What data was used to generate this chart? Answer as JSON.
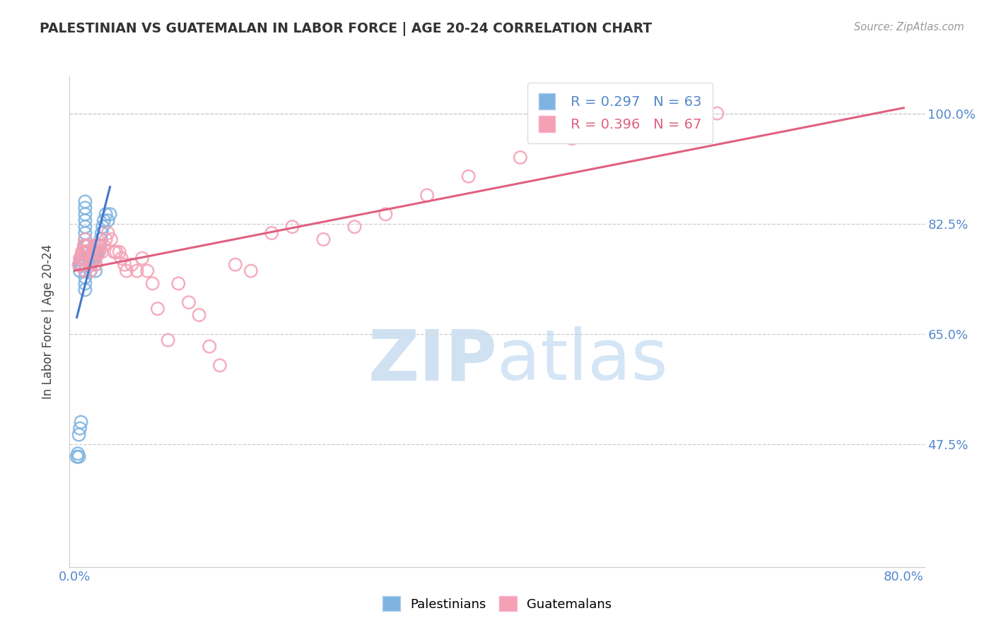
{
  "title": "PALESTINIAN VS GUATEMALAN IN LABOR FORCE | AGE 20-24 CORRELATION CHART",
  "source": "Source: ZipAtlas.com",
  "ylabel": "In Labor Force | Age 20-24",
  "xlim": [
    -0.005,
    0.82
  ],
  "ylim": [
    0.28,
    1.06
  ],
  "ytick_positions": [
    0.475,
    0.65,
    0.825,
    1.0
  ],
  "ytick_labels": [
    "47.5%",
    "65.0%",
    "82.5%",
    "100.0%"
  ],
  "blue_color": "#7EB3E0",
  "pink_color": "#F4A0B5",
  "blue_line_color": "#4477CC",
  "pink_line_color": "#E06080",
  "blue_R": 0.297,
  "blue_N": 63,
  "pink_R": 0.396,
  "pink_N": 67,
  "legend_palestinians": "Palestinians",
  "legend_guatemalans": "Guatemalans",
  "palestinians_x": [
    0.002,
    0.003,
    0.004,
    0.005,
    0.005,
    0.006,
    0.006,
    0.007,
    0.007,
    0.008,
    0.008,
    0.009,
    0.009,
    0.01,
    0.01,
    0.01,
    0.01,
    0.01,
    0.01,
    0.01,
    0.01,
    0.01,
    0.01,
    0.01,
    0.01,
    0.01,
    0.01,
    0.01,
    0.012,
    0.012,
    0.013,
    0.013,
    0.014,
    0.014,
    0.015,
    0.015,
    0.015,
    0.016,
    0.016,
    0.017,
    0.017,
    0.018,
    0.018,
    0.019,
    0.019,
    0.02,
    0.02,
    0.02,
    0.02,
    0.021,
    0.022,
    0.023,
    0.024,
    0.025,
    0.026,
    0.027,
    0.028,
    0.03,
    0.032,
    0.034,
    0.004,
    0.005,
    0.006
  ],
  "palestinians_y": [
    0.455,
    0.46,
    0.455,
    0.75,
    0.76,
    0.76,
    0.77,
    0.76,
    0.77,
    0.77,
    0.78,
    0.78,
    0.79,
    0.72,
    0.73,
    0.74,
    0.75,
    0.76,
    0.77,
    0.78,
    0.79,
    0.8,
    0.81,
    0.82,
    0.83,
    0.84,
    0.85,
    0.86,
    0.78,
    0.79,
    0.77,
    0.78,
    0.76,
    0.77,
    0.75,
    0.76,
    0.77,
    0.76,
    0.77,
    0.77,
    0.78,
    0.77,
    0.78,
    0.77,
    0.78,
    0.75,
    0.76,
    0.77,
    0.78,
    0.78,
    0.78,
    0.78,
    0.79,
    0.8,
    0.81,
    0.82,
    0.83,
    0.84,
    0.83,
    0.84,
    0.49,
    0.5,
    0.51
  ],
  "guatemalans_x": [
    0.004,
    0.005,
    0.006,
    0.007,
    0.007,
    0.008,
    0.008,
    0.009,
    0.009,
    0.01,
    0.01,
    0.01,
    0.01,
    0.01,
    0.01,
    0.012,
    0.013,
    0.014,
    0.015,
    0.015,
    0.016,
    0.017,
    0.018,
    0.019,
    0.02,
    0.02,
    0.021,
    0.022,
    0.023,
    0.024,
    0.025,
    0.026,
    0.028,
    0.03,
    0.032,
    0.035,
    0.038,
    0.04,
    0.043,
    0.045,
    0.048,
    0.05,
    0.055,
    0.06,
    0.065,
    0.07,
    0.075,
    0.08,
    0.09,
    0.1,
    0.11,
    0.12,
    0.13,
    0.14,
    0.155,
    0.17,
    0.19,
    0.21,
    0.24,
    0.27,
    0.3,
    0.34,
    0.38,
    0.43,
    0.48,
    0.55,
    0.62
  ],
  "guatemalans_y": [
    0.76,
    0.77,
    0.76,
    0.77,
    0.78,
    0.77,
    0.78,
    0.78,
    0.79,
    0.75,
    0.76,
    0.77,
    0.78,
    0.79,
    0.8,
    0.78,
    0.79,
    0.78,
    0.75,
    0.76,
    0.76,
    0.77,
    0.78,
    0.79,
    0.76,
    0.77,
    0.78,
    0.79,
    0.78,
    0.79,
    0.79,
    0.78,
    0.79,
    0.8,
    0.81,
    0.8,
    0.78,
    0.78,
    0.78,
    0.77,
    0.76,
    0.75,
    0.76,
    0.75,
    0.77,
    0.75,
    0.73,
    0.69,
    0.64,
    0.73,
    0.7,
    0.68,
    0.63,
    0.6,
    0.76,
    0.75,
    0.81,
    0.82,
    0.8,
    0.82,
    0.84,
    0.87,
    0.9,
    0.93,
    0.96,
    0.98,
    1.0
  ]
}
